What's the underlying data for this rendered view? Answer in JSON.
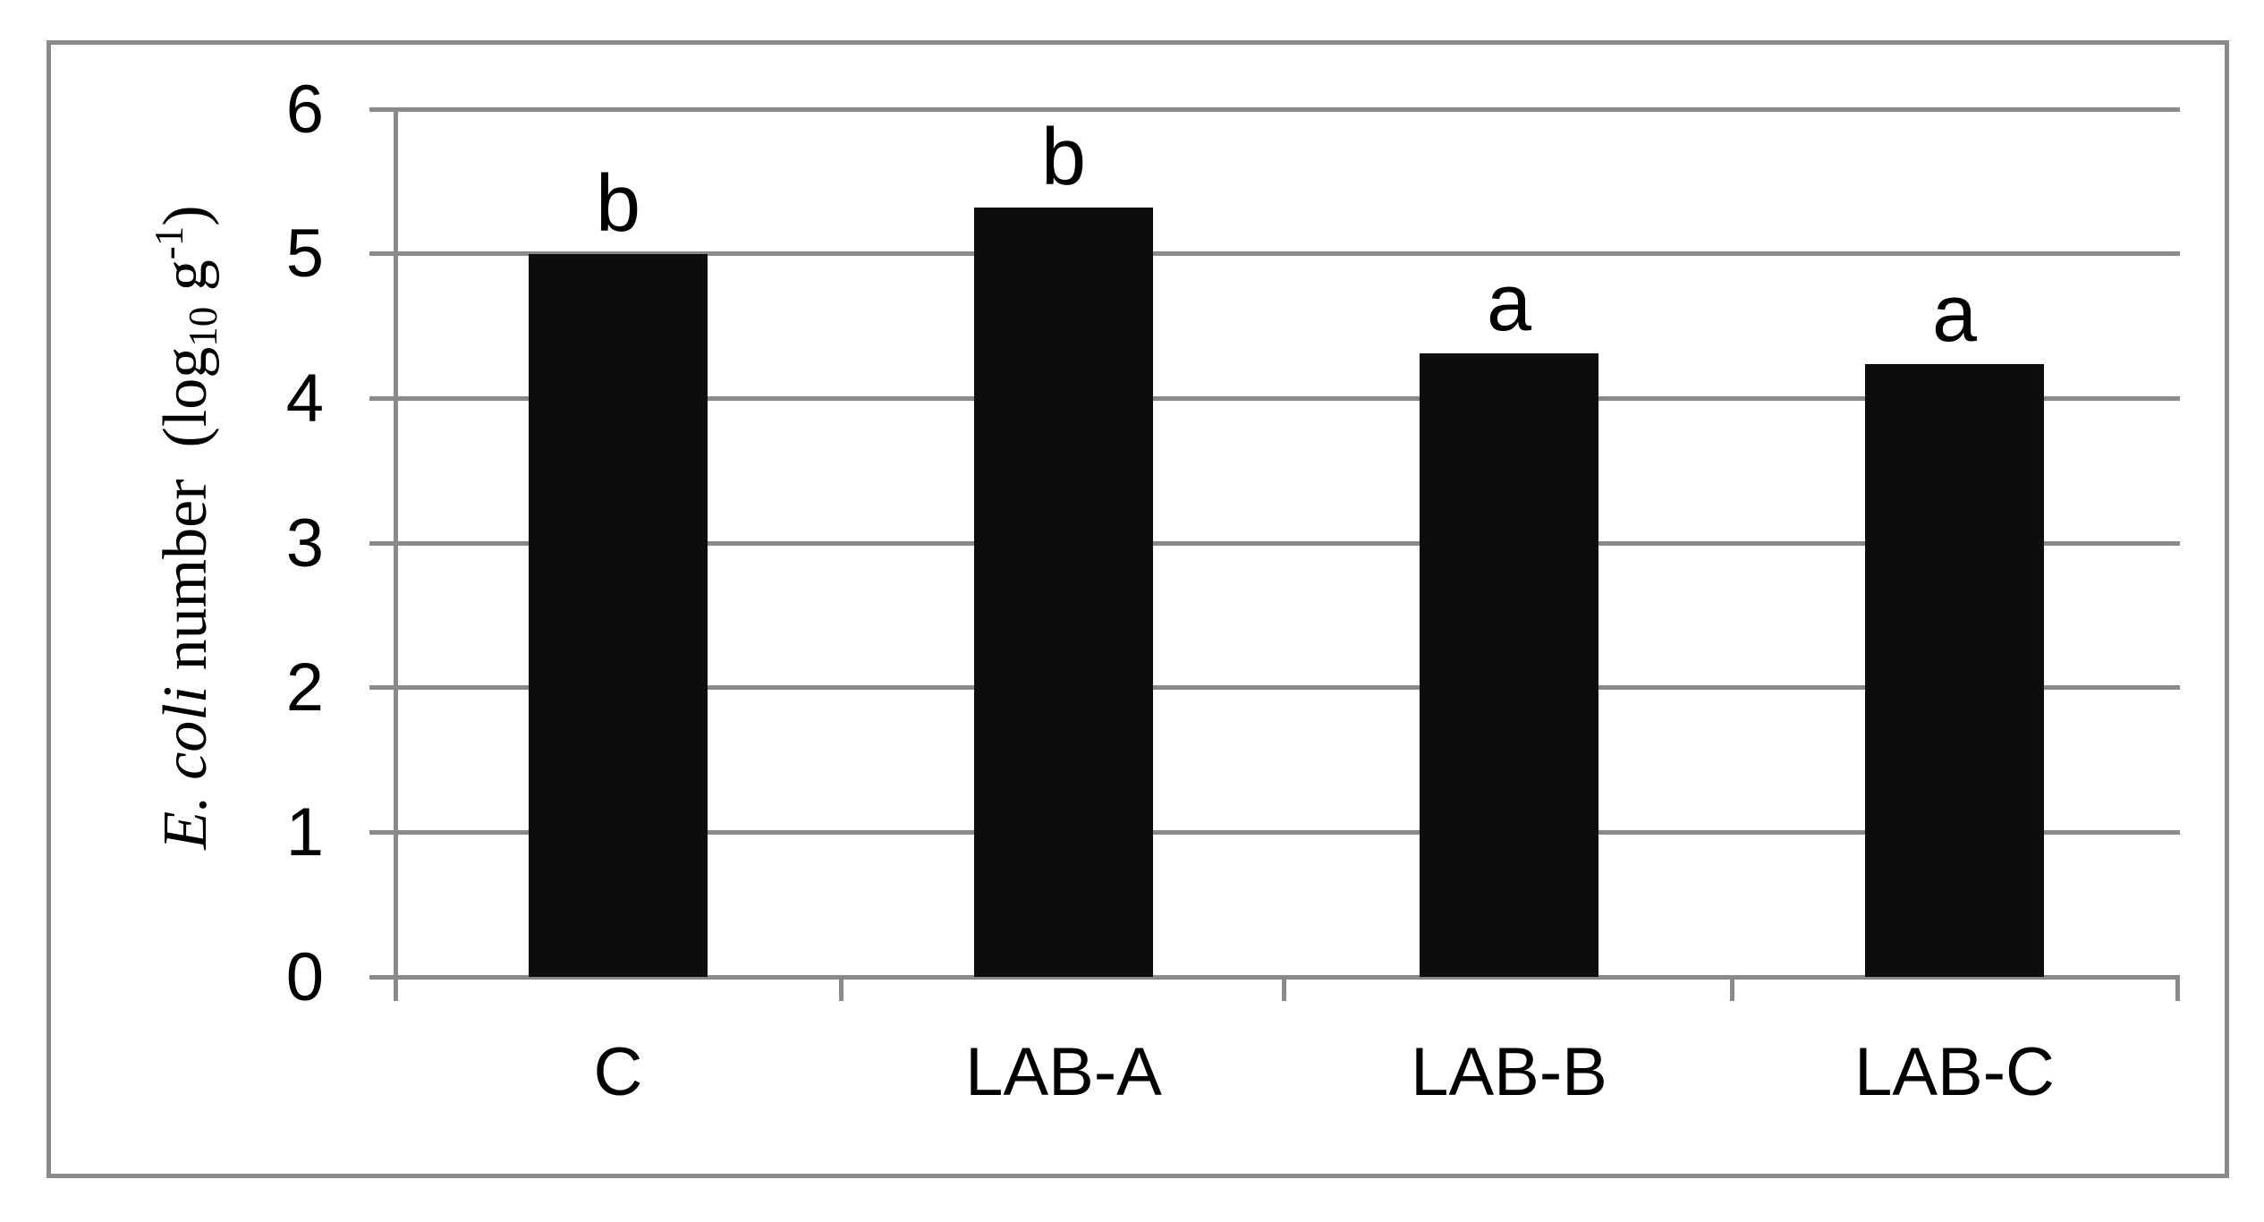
{
  "figure": {
    "y_axis": {
      "title_italic": "E. coli",
      "title_text": " number  (log",
      "title_subscript": "10",
      "title_text2": " g",
      "title_superscript": "-1",
      "title_close": ")",
      "tick_labels": [
        "0",
        "1",
        "2",
        "3",
        "4",
        "5",
        "6"
      ]
    }
  },
  "chart_data": {
    "type": "bar",
    "title": "",
    "xlabel": "",
    "ylabel": "E. coli number (log₁₀ g⁻¹)",
    "categories": [
      "C",
      "LAB-A",
      "LAB-B",
      "LAB-C"
    ],
    "values": [
      5.0,
      5.32,
      4.31,
      4.24
    ],
    "bar_labels": [
      "b",
      "b",
      "a",
      "a"
    ],
    "ylim": [
      0,
      6
    ],
    "yticks": [
      0,
      1,
      2,
      3,
      4,
      5,
      6
    ],
    "grid": true,
    "legend_position": "none",
    "bar_color": "#0d0d0d",
    "line_color": "#8a8a8a"
  }
}
